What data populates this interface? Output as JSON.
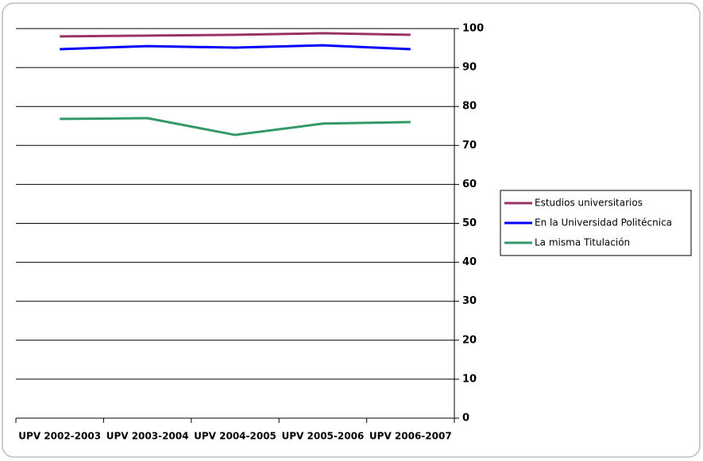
{
  "chart_data": {
    "type": "line",
    "categories": [
      "UPV 2002-2003",
      "UPV 2003-2004",
      "UPV 2004-2005",
      "UPV 2005-2006",
      "UPV 2006-2007"
    ],
    "series": [
      {
        "name": "Estudios universitarios",
        "color": "#993366",
        "values": [
          98.0,
          98.2,
          98.4,
          98.8,
          98.4
        ]
      },
      {
        "name": "En la Universidad Politécnica",
        "color": "#0000ff",
        "values": [
          94.7,
          95.5,
          95.1,
          95.7,
          94.7
        ]
      },
      {
        "name": "La misma Titulación",
        "color": "#339966",
        "values": [
          76.8,
          77.0,
          72.7,
          75.6,
          76.0
        ]
      }
    ],
    "ylim": [
      0,
      100
    ],
    "yticks": [
      0,
      10,
      20,
      30,
      40,
      50,
      60,
      70,
      80,
      90,
      100
    ],
    "grid": true,
    "legend": "right"
  }
}
